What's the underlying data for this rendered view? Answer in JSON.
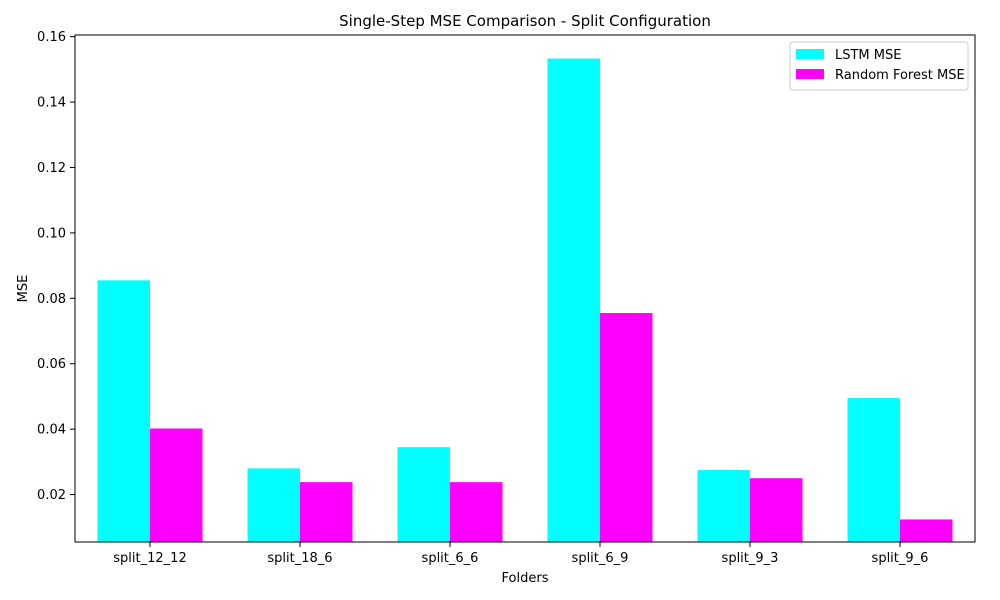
{
  "chart_data": {
    "type": "bar",
    "title": "Single-Step MSE Comparison - Split Configuration",
    "xlabel": "Folders",
    "ylabel": "MSE",
    "categories": [
      "split_12_12",
      "split_18_6",
      "split_6_6",
      "split_6_9",
      "split_9_3",
      "split_9_6"
    ],
    "series": [
      {
        "name": "LSTM MSE",
        "color": "#00ffff",
        "values": [
          0.0855,
          0.028,
          0.0345,
          0.1533,
          0.0275,
          0.0495
        ]
      },
      {
        "name": "Random Forest MSE",
        "color": "#ff00ff",
        "values": [
          0.0402,
          0.0238,
          0.0238,
          0.0755,
          0.025,
          0.0124
        ]
      }
    ],
    "ylim": [
      0.0055,
      0.1605
    ],
    "yticks": [
      "0.02",
      "0.04",
      "0.06",
      "0.08",
      "0.10",
      "0.12",
      "0.14",
      "0.16"
    ],
    "grid": false,
    "legend_position": "top-right"
  }
}
